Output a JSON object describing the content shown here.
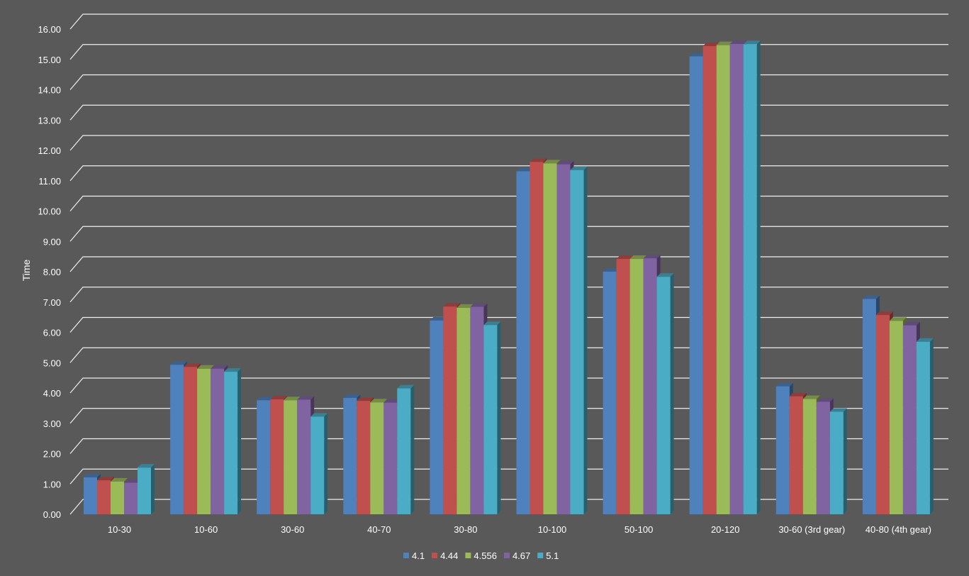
{
  "chart_data": {
    "type": "bar",
    "title": "",
    "xlabel": "",
    "ylabel": "Time",
    "ylim": [
      0,
      16
    ],
    "y_step": 1,
    "y_tick_format_decimals": 2,
    "grid": true,
    "legend_position": "bottom",
    "style": "3d-clustered-column",
    "background_color": "#595959",
    "gridline_color": "#ffffff",
    "categories": [
      "10-30",
      "10-60",
      "30-60",
      "40-70",
      "30-80",
      "10-100",
      "50-100",
      "20-120",
      "30-60 (3rd gear)",
      "40-80 (4th gear)"
    ],
    "series": [
      {
        "name": "4.1",
        "color": "#4f81bd",
        "values": [
          1.22,
          4.93,
          3.76,
          3.84,
          6.39,
          11.31,
          8.0,
          15.1,
          4.22,
          7.1
        ]
      },
      {
        "name": "4.44",
        "color": "#c0504d",
        "values": [
          1.12,
          4.86,
          3.79,
          3.74,
          6.85,
          11.62,
          8.42,
          15.44,
          3.89,
          6.57
        ]
      },
      {
        "name": "4.556",
        "color": "#9bbb59",
        "values": [
          1.08,
          4.8,
          3.76,
          3.69,
          6.81,
          11.57,
          8.42,
          15.47,
          3.8,
          6.38
        ]
      },
      {
        "name": "4.67",
        "color": "#8064a2",
        "values": [
          1.04,
          4.8,
          3.78,
          3.68,
          6.84,
          11.54,
          8.44,
          15.51,
          3.71,
          6.23
        ]
      },
      {
        "name": "5.1",
        "color": "#4bacc6",
        "values": [
          1.54,
          4.7,
          3.22,
          4.15,
          6.24,
          11.35,
          7.83,
          15.5,
          3.38,
          5.69
        ]
      }
    ]
  }
}
